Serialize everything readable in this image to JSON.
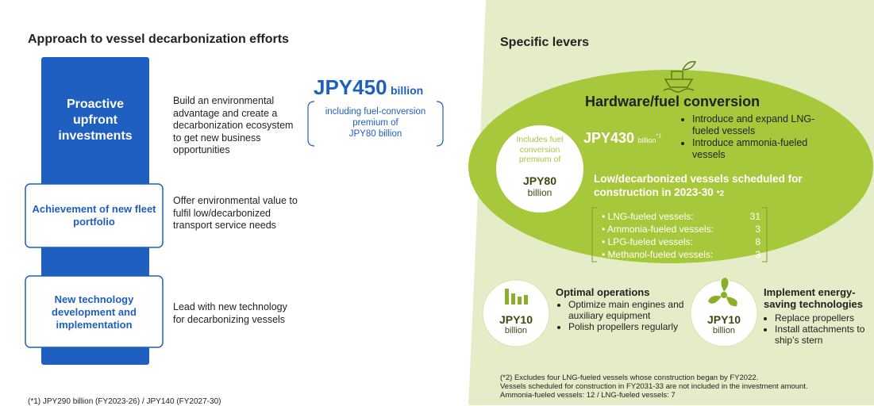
{
  "left": {
    "title": "Approach to vessel decarbonization efforts",
    "items": [
      {
        "label": "Proactive upfront investments",
        "description": "Build an environmental advantage and create a decarbonization ecosystem to get new business opportunities"
      },
      {
        "label": "Achievement of new fleet portfolio",
        "description": "Offer environmental value to fulfil low/decarbonized transport service needs"
      },
      {
        "label": "New technology development and implementation",
        "description": "Lead with new technology for decarbonizing vessels"
      }
    ],
    "investment": {
      "amount": "JPY450",
      "unit": "billion",
      "note": "including fuel-conversion premium of",
      "note_amount": "JPY80 billion"
    },
    "footnote": "(*1) JPY290 billion (FY2023-26) / JPY140 (FY2027-30)"
  },
  "right": {
    "title": "Specific levers",
    "hardware": {
      "title": "Hardware/fuel conversion",
      "amount": "JPY430",
      "unit": "billion",
      "unit_note": "*1",
      "premium": {
        "text": "Includes fuel conversion premium of",
        "amount": "JPY80",
        "unit": "billion"
      },
      "bullets": [
        "Introduce and expand LNG-fueled vessels",
        "Introduce ammonia-fueled vessels"
      ],
      "schedule_title": "Low/decarbonized vessels scheduled for construction in 2023-30",
      "schedule_note": "*2",
      "vessels": [
        {
          "name": "LNG-fueled vessels:",
          "count": 31
        },
        {
          "name": "Ammonia-fueled vessels:",
          "count": 3
        },
        {
          "name": "LPG-fueled vessels:",
          "count": 8
        },
        {
          "name": "Methanol-fueled vessels:",
          "count": 3
        }
      ]
    },
    "operations": {
      "title": "Optimal operations",
      "amount": "JPY10",
      "unit": "billion",
      "bullets": [
        "Optimize main engines and auxiliary equipment",
        "Polish propellers regularly"
      ]
    },
    "energy": {
      "title": "Implement energy-saving technologies",
      "amount": "JPY10",
      "unit": "billion",
      "bullets": [
        "Replace propellers",
        "Install attachments to ship’s stern"
      ]
    },
    "footnote": [
      "(*2) Excludes four LNG-fueled vessels whose construction began by FY2022.",
      "Vessels scheduled for construction in FY2031-33 are not included in the investment amount.",
      "Ammonia-fueled vessels: 12 / LNG-fueled vessels: 7"
    ]
  }
}
